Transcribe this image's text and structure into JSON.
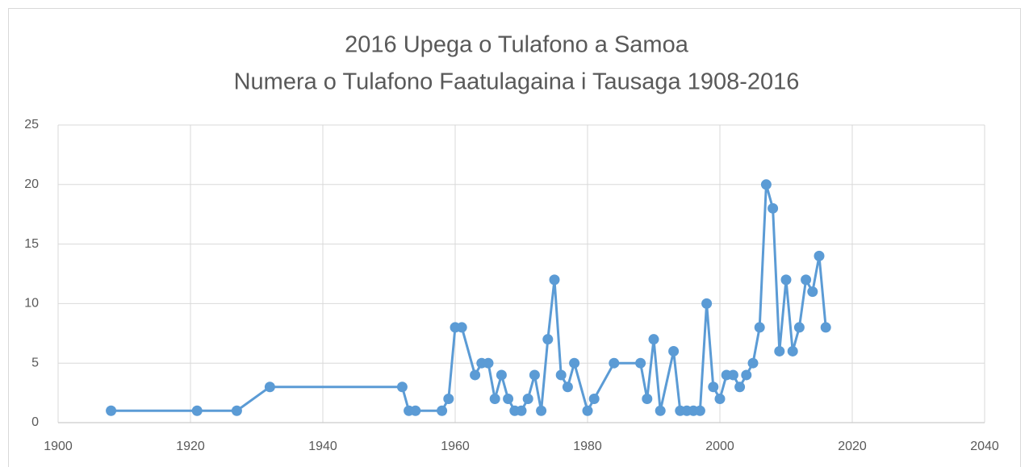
{
  "chart_data": {
    "type": "line",
    "title": "2016 Upega o Tulafono a Samoa",
    "subtitle": "Numera o Tulafono Faatulagaina i Tausaga 1908-2016",
    "x": [
      1908,
      1921,
      1927,
      1932,
      1952,
      1953,
      1954,
      1958,
      1959,
      1960,
      1961,
      1963,
      1964,
      1965,
      1966,
      1967,
      1968,
      1969,
      1970,
      1971,
      1972,
      1973,
      1974,
      1975,
      1976,
      1977,
      1978,
      1980,
      1981,
      1984,
      1988,
      1989,
      1990,
      1991,
      1993,
      1994,
      1995,
      1996,
      1997,
      1998,
      1999,
      2000,
      2001,
      2002,
      2003,
      2004,
      2005,
      2006,
      2007,
      2008,
      2009,
      2010,
      2011,
      2012,
      2013,
      2014,
      2015,
      2016
    ],
    "series": [
      {
        "color": "#5b9bd5",
        "values": [
          1,
          1,
          1,
          3,
          3,
          1,
          1,
          1,
          2,
          8,
          8,
          4,
          5,
          5,
          2,
          4,
          2,
          1,
          1,
          2,
          4,
          1,
          7,
          12,
          4,
          3,
          5,
          1,
          2,
          5,
          5,
          2,
          7,
          1,
          6,
          1,
          1,
          1,
          1,
          10,
          3,
          2,
          4,
          4,
          3,
          4,
          5,
          8,
          20,
          18,
          6,
          12,
          6,
          8,
          12,
          11,
          14,
          8
        ]
      }
    ],
    "xlim": [
      1900,
      2040
    ],
    "xticks": [
      1900,
      1920,
      1940,
      1960,
      1980,
      2000,
      2020,
      2040
    ],
    "ylim": [
      0,
      25
    ],
    "yticks": [
      0,
      5,
      10,
      15,
      20,
      25
    ],
    "grid": true,
    "markers": true
  }
}
